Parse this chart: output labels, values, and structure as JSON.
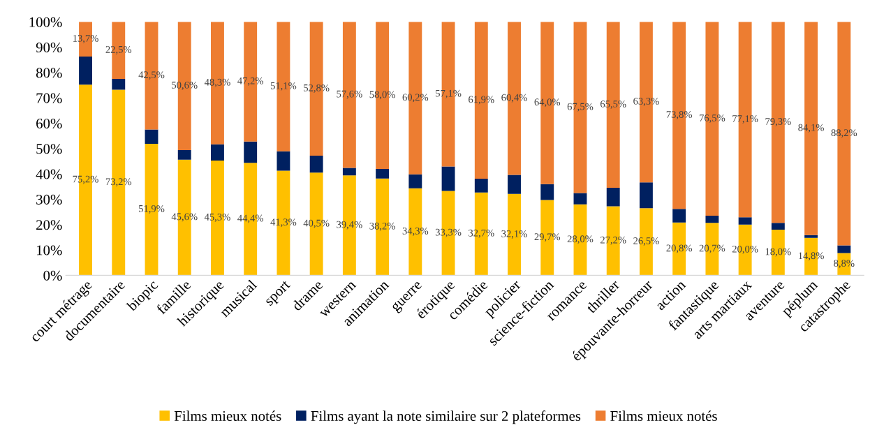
{
  "chart_data": {
    "type": "bar",
    "stacked": true,
    "legend": "bottom",
    "grid": false,
    "categories": [
      "court métrage",
      "documentaire",
      "biopic",
      "famille",
      "historique",
      "musical",
      "sport",
      "drame",
      "western",
      "animation",
      "guerre",
      "érotique",
      "comédie",
      "policier",
      "science-fiction",
      "romance",
      "thriller",
      "épouvante-horreur",
      "action",
      "fantastique",
      "arts martiaux",
      "aventure",
      "péplum",
      "catastrophe"
    ],
    "ylim": [
      0,
      100
    ],
    "yticks": [
      {
        "value": 0,
        "label": "0%"
      },
      {
        "value": 10,
        "label": "10%"
      },
      {
        "value": 20,
        "label": "20%"
      },
      {
        "value": 30,
        "label": "30%"
      },
      {
        "value": 40,
        "label": "40%"
      },
      {
        "value": 50,
        "label": "50%"
      },
      {
        "value": 60,
        "label": "60%"
      },
      {
        "value": 70,
        "label": "70%"
      },
      {
        "value": 80,
        "label": "80%"
      },
      {
        "value": 90,
        "label": "90%"
      },
      {
        "value": 100,
        "label": "100%"
      }
    ],
    "series": [
      {
        "name": "Films mieux notés",
        "color": "#ffc000",
        "values": [
          75.2,
          73.2,
          51.9,
          45.6,
          45.3,
          44.4,
          41.3,
          40.5,
          39.4,
          38.2,
          34.3,
          33.3,
          32.7,
          32.1,
          29.7,
          28.0,
          27.2,
          26.5,
          20.8,
          20.7,
          20.0,
          18.0,
          14.8,
          8.8
        ],
        "value_labels": [
          "75,2%",
          "73,2%",
          "51,9%",
          "45,6%",
          "45,3%",
          "44,4%",
          "41,3%",
          "40,5%",
          "39,4%",
          "38,2%",
          "34,3%",
          "33,3%",
          "32,7%",
          "32,1%",
          "29,7%",
          "28,0%",
          "27,2%",
          "26,5%",
          "20,8%",
          "20,7%",
          "20,0%",
          "18,0%",
          "14,8%",
          "8,8%"
        ]
      },
      {
        "name": "Films ayant la note similaire sur 2 plateformes",
        "color": "#002060",
        "values": [
          11.1,
          4.3,
          5.6,
          3.8,
          6.4,
          8.4,
          7.6,
          6.7,
          3.0,
          3.8,
          5.5,
          9.6,
          5.4,
          7.5,
          6.3,
          4.5,
          7.3,
          10.2,
          5.4,
          2.8,
          2.9,
          2.7,
          1.1,
          3.0
        ]
      },
      {
        "name": "Films mieux notés",
        "color": "#ed7d31",
        "values": [
          13.7,
          22.5,
          42.5,
          50.6,
          48.3,
          47.2,
          51.1,
          52.8,
          57.6,
          58.0,
          60.2,
          57.1,
          61.9,
          60.4,
          64.0,
          67.5,
          65.5,
          63.3,
          73.8,
          76.5,
          77.1,
          79.3,
          84.1,
          88.2
        ],
        "value_labels": [
          "13,7%",
          "22,5%",
          "42,5%",
          "50,6%",
          "48,3%",
          "47,2%",
          "51,1%",
          "52,8%",
          "57,6%",
          "58,0%",
          "60,2%",
          "57,1%",
          "61,9%",
          "60,4%",
          "64,0%",
          "67,5%",
          "65,5%",
          "63,3%",
          "73,8%",
          "76,5%",
          "77,1%",
          "79,3%",
          "84,1%",
          "88,2%"
        ]
      }
    ]
  }
}
